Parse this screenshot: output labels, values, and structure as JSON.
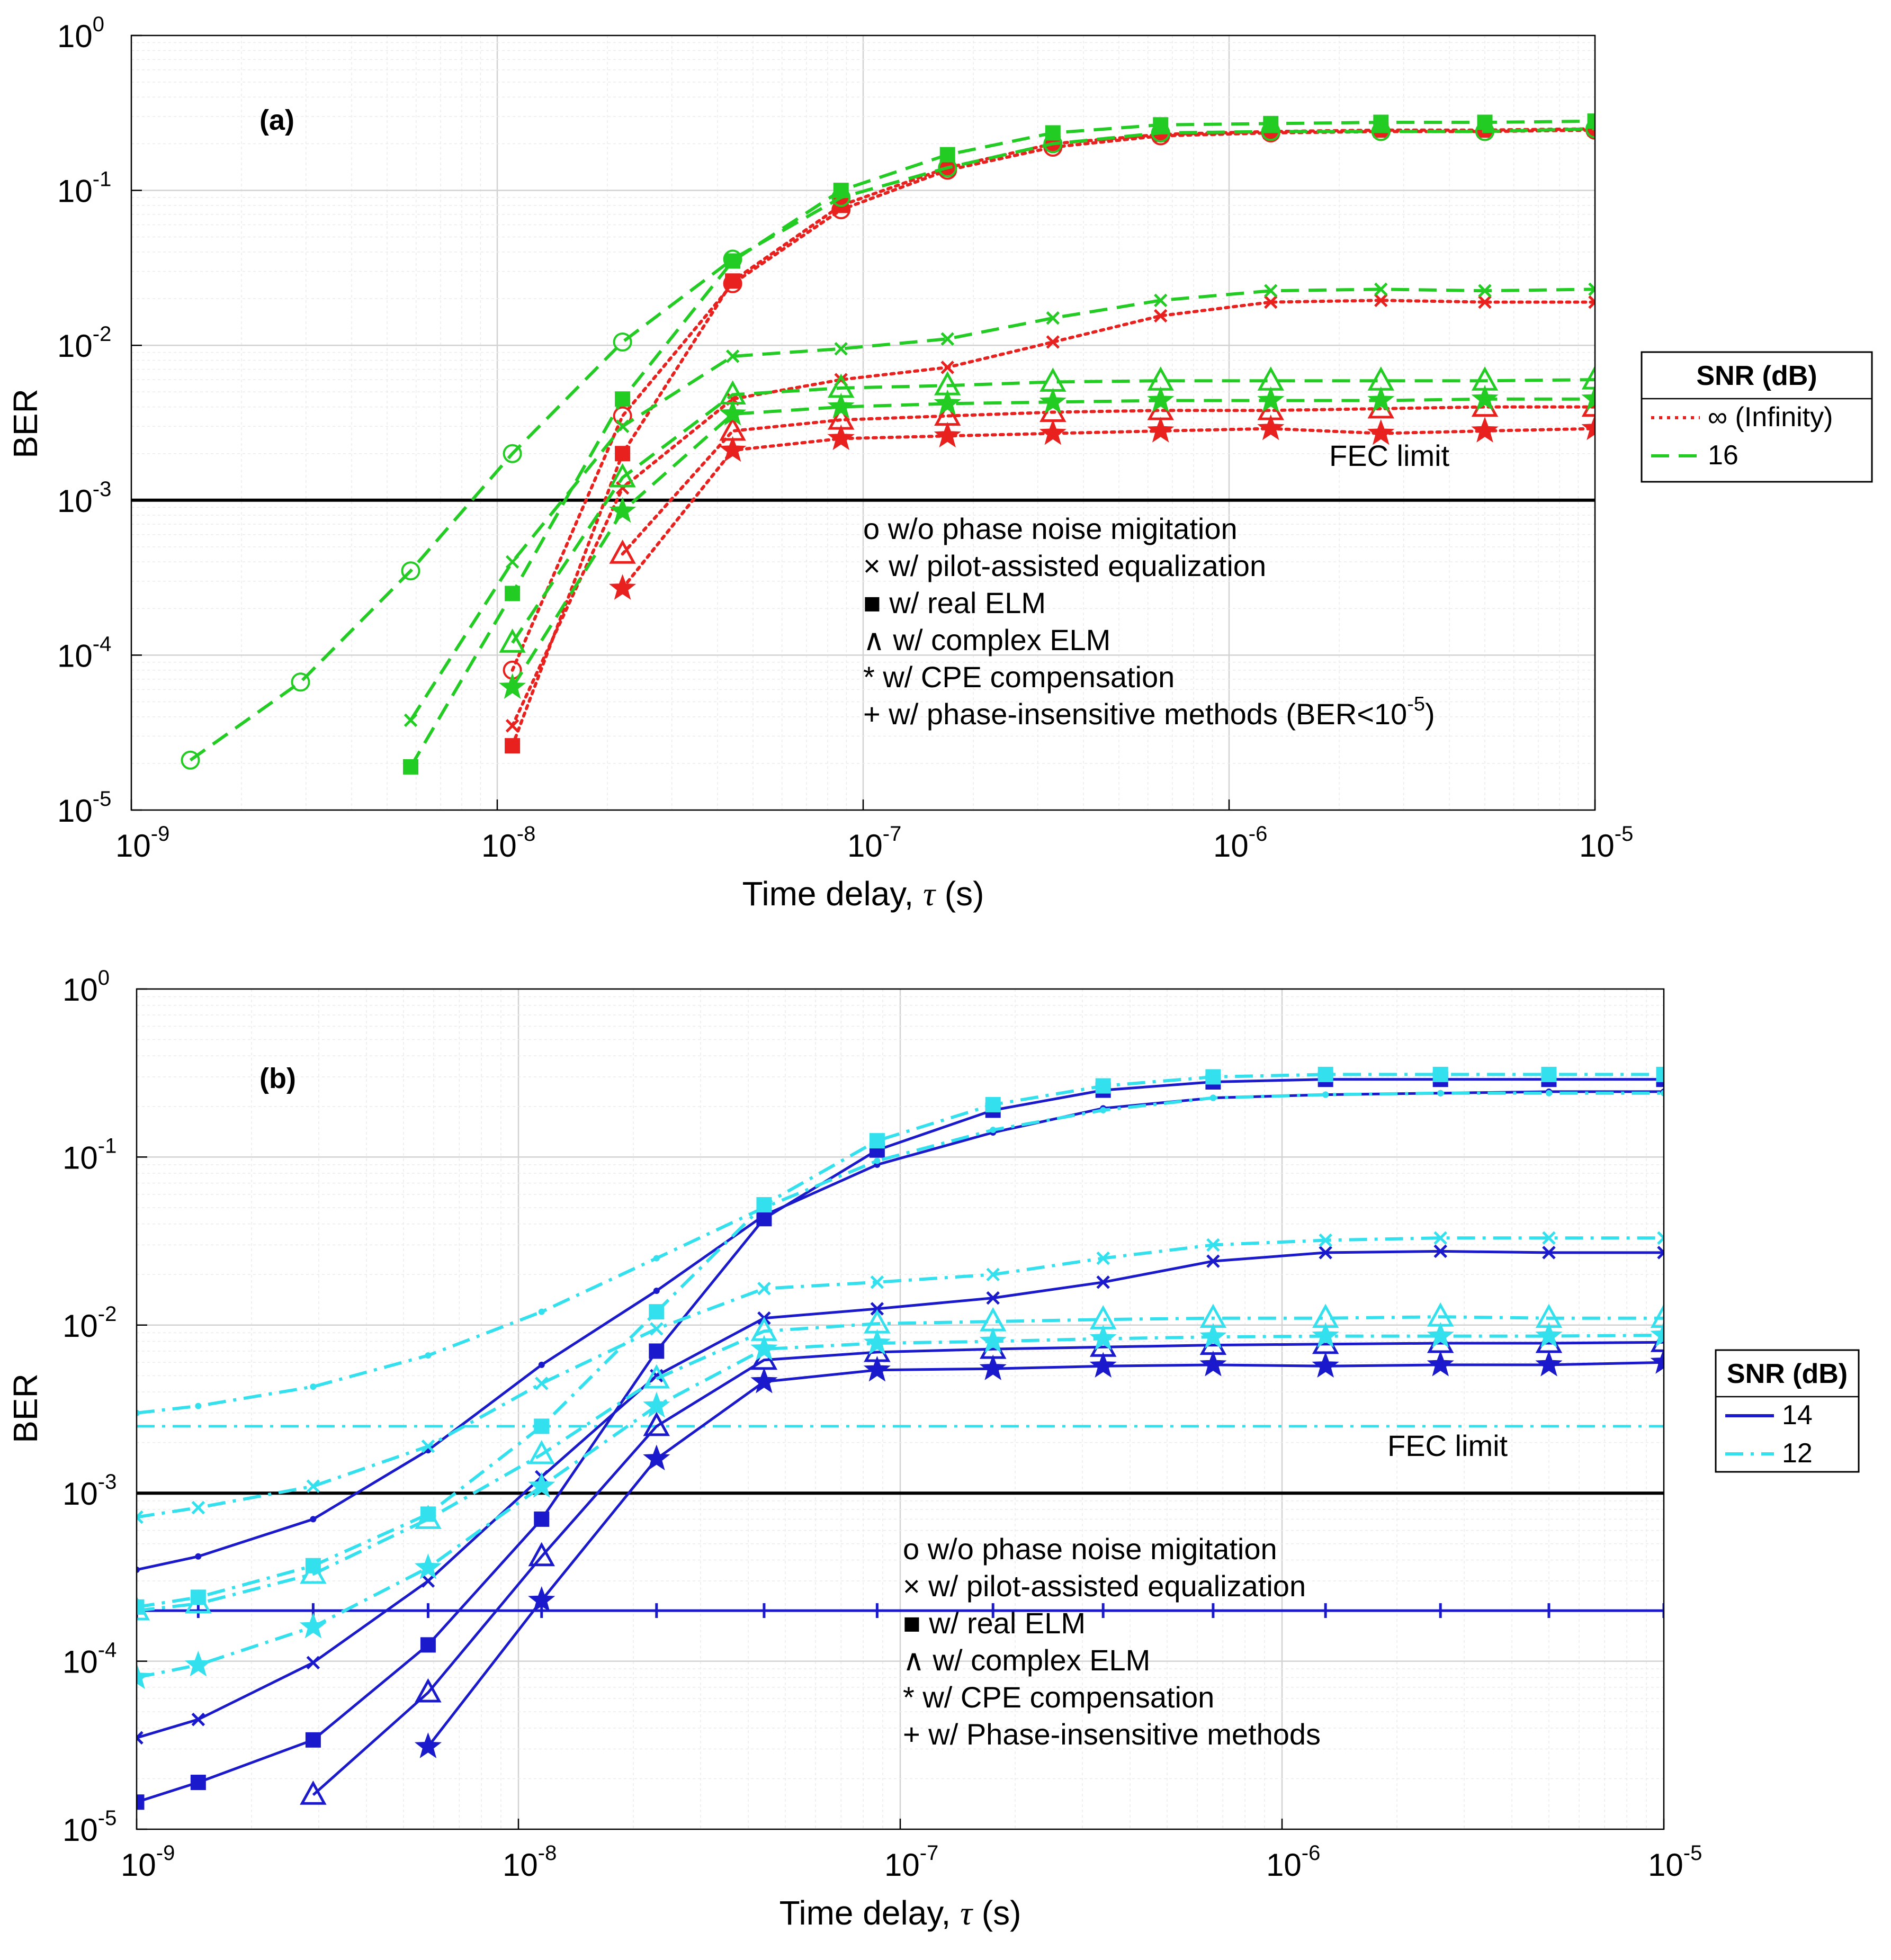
{
  "chart_data": [
    {
      "type": "line",
      "panel_label": "(a)",
      "xscale": "log",
      "yscale": "log",
      "xlim": [
        1e-09,
        1e-05
      ],
      "ylim": [
        1e-05,
        1
      ],
      "grid": true,
      "xlabel_main": "Time delay, ",
      "xlabel_tau": "τ",
      "xlabel_unit": " (s)",
      "ylabel": "BER",
      "x_ticks": [
        {
          "base": "10",
          "exp": "-9",
          "v": 1e-09
        },
        {
          "base": "10",
          "exp": "-8",
          "v": 1e-08
        },
        {
          "base": "10",
          "exp": "-7",
          "v": 1e-07
        },
        {
          "base": "10",
          "exp": "-6",
          "v": 1e-06
        },
        {
          "base": "10",
          "exp": "-5",
          "v": 1e-05
        }
      ],
      "y_ticks": [
        {
          "base": "10",
          "exp": "0",
          "v": 1
        },
        {
          "base": "10",
          "exp": "-1",
          "v": 0.1
        },
        {
          "base": "10",
          "exp": "-2",
          "v": 0.01
        },
        {
          "base": "10",
          "exp": "-3",
          "v": 0.001
        },
        {
          "base": "10",
          "exp": "-4",
          "v": 0.0001
        },
        {
          "base": "10",
          "exp": "-5",
          "v": 1e-05
        }
      ],
      "fec_limits": [
        {
          "value": 0.001,
          "color": "#000000",
          "style": "solid",
          "label": "FEC limit"
        }
      ],
      "notes": [
        "o w/o phase noise migitation",
        "× w/ pilot-assisted equalization",
        "■ w/ real ELM",
        "∧ w/ complex ELM",
        "* w/ CPE compensation",
        "+ w/ phase-insensitive methods (BER<10",
        "-5",
        ")"
      ],
      "legend": {
        "title": "SNR (dB)",
        "position": "right",
        "entries": [
          {
            "label": "∞ (Infinity)",
            "color": "#e8211f",
            "style": "dotted"
          },
          {
            "label": "16",
            "color": "#22cc22",
            "style": "dashed"
          }
        ]
      },
      "x": [
        1.45e-09,
        2.9e-09,
        5.8e-09,
        1.1e-08,
        2.2e-08,
        4.4e-08,
        8.7e-08,
        1.7e-07,
        3.3e-07,
        6.5e-07,
        1.3e-06,
        2.6e-06,
        5e-06,
        1e-05
      ],
      "series": [
        {
          "name": "∞ w/o",
          "color": "#e8211f",
          "style": "dotted",
          "marker": "circle",
          "values": [
            null,
            null,
            null,
            8e-05,
            0.0035,
            0.025,
            0.075,
            0.135,
            0.19,
            0.225,
            0.235,
            0.24,
            0.24,
            0.245
          ]
        },
        {
          "name": "∞ pilot",
          "color": "#e8211f",
          "style": "dotted",
          "marker": "x",
          "values": [
            null,
            null,
            null,
            3.5e-05,
            0.0012,
            0.0045,
            0.006,
            0.0072,
            0.0105,
            0.0155,
            0.019,
            0.0195,
            0.019,
            0.019
          ]
        },
        {
          "name": "∞ real ELM",
          "color": "#e8211f",
          "style": "dotted",
          "marker": "square",
          "values": [
            null,
            null,
            null,
            2.6e-05,
            0.002,
            0.026,
            0.08,
            0.14,
            0.2,
            0.23,
            0.24,
            0.245,
            0.245,
            0.25
          ]
        },
        {
          "name": "∞ complex ELM",
          "color": "#e8211f",
          "style": "dotted",
          "marker": "triangle",
          "values": [
            null,
            null,
            null,
            null,
            0.00045,
            0.0028,
            0.0033,
            0.0035,
            0.0037,
            0.0038,
            0.0038,
            0.0039,
            0.004,
            0.004
          ]
        },
        {
          "name": "∞ CPE",
          "color": "#e8211f",
          "style": "dotted",
          "marker": "star",
          "values": [
            null,
            null,
            null,
            null,
            0.00027,
            0.0021,
            0.0025,
            0.0026,
            0.0027,
            0.0028,
            0.0029,
            0.0027,
            0.0028,
            0.0029
          ]
        },
        {
          "name": "16 w/o",
          "color": "#22cc22",
          "style": "dashed",
          "marker": "circle",
          "values": [
            2.1e-05,
            6.7e-05,
            0.00035,
            0.002,
            0.0105,
            0.036,
            0.09,
            0.14,
            0.2,
            0.235,
            0.24,
            0.24,
            0.24,
            0.25
          ]
        },
        {
          "name": "16 pilot",
          "color": "#22cc22",
          "style": "dashed",
          "marker": "x",
          "values": [
            null,
            null,
            3.8e-05,
            0.0004,
            0.003,
            0.0085,
            0.0095,
            0.011,
            0.015,
            0.0195,
            0.0225,
            0.023,
            0.0225,
            0.023
          ]
        },
        {
          "name": "16 real ELM",
          "color": "#22cc22",
          "style": "dashed",
          "marker": "square",
          "values": [
            null,
            null,
            1.9e-05,
            0.00025,
            0.0045,
            0.035,
            0.1,
            0.17,
            0.235,
            0.265,
            0.27,
            0.275,
            0.275,
            0.28
          ]
        },
        {
          "name": "16 complex ELM",
          "color": "#22cc22",
          "style": "dashed",
          "marker": "triangle",
          "values": [
            null,
            null,
            null,
            0.00012,
            0.0014,
            0.0048,
            0.0053,
            0.0055,
            0.0058,
            0.0059,
            0.0059,
            0.0059,
            0.0059,
            0.006
          ]
        },
        {
          "name": "16 CPE",
          "color": "#22cc22",
          "style": "dashed",
          "marker": "star",
          "values": [
            null,
            null,
            null,
            6.2e-05,
            0.00085,
            0.0036,
            0.004,
            0.0042,
            0.0043,
            0.0044,
            0.0044,
            0.0044,
            0.0045,
            0.0045
          ]
        }
      ]
    },
    {
      "type": "line",
      "panel_label": "(b)",
      "xscale": "log",
      "yscale": "log",
      "xlim": [
        1e-09,
        1e-05
      ],
      "ylim": [
        1e-05,
        1
      ],
      "grid": true,
      "xlabel_main": "Time delay, ",
      "xlabel_tau": "τ",
      "xlabel_unit": " (s)",
      "ylabel": "BER",
      "x_ticks": [
        {
          "base": "10",
          "exp": "-9",
          "v": 1e-09
        },
        {
          "base": "10",
          "exp": "-8",
          "v": 1e-08
        },
        {
          "base": "10",
          "exp": "-7",
          "v": 1e-07
        },
        {
          "base": "10",
          "exp": "-6",
          "v": 1e-06
        },
        {
          "base": "10",
          "exp": "-5",
          "v": 1e-05
        }
      ],
      "y_ticks": [
        {
          "base": "10",
          "exp": "0",
          "v": 1
        },
        {
          "base": "10",
          "exp": "-1",
          "v": 0.1
        },
        {
          "base": "10",
          "exp": "-2",
          "v": 0.01
        },
        {
          "base": "10",
          "exp": "-3",
          "v": 0.001
        },
        {
          "base": "10",
          "exp": "-4",
          "v": 0.0001
        },
        {
          "base": "10",
          "exp": "-5",
          "v": 1e-05
        }
      ],
      "fec_limits": [
        {
          "value": 0.001,
          "color": "#000000",
          "style": "solid",
          "label": ""
        },
        {
          "value": 0.0025,
          "color": "#33e0ee",
          "style": "dashdot",
          "label": "FEC limit"
        }
      ],
      "notes": [
        "o w/o phase noise migitation",
        "× w/ pilot-assisted equalization",
        "■ w/ real ELM",
        "∧ w/ complex ELM",
        "* w/ CPE compensation",
        "+ w/ Phase-insensitive methods"
      ],
      "legend": {
        "title": "SNR (dB)",
        "position": "right",
        "entries": [
          {
            "label": "14",
            "color": "#1a1acc",
            "style": "solid"
          },
          {
            "label": "12",
            "color": "#33e0ee",
            "style": "dashdot"
          }
        ]
      },
      "x": [
        1e-09,
        1.45e-09,
        2.9e-09,
        5.8e-09,
        1.15e-08,
        2.3e-08,
        4.4e-08,
        8.7e-08,
        1.75e-07,
        3.4e-07,
        6.6e-07,
        1.3e-06,
        2.6e-06,
        5e-06,
        1e-05
      ],
      "series": [
        {
          "name": "14 w/o",
          "color": "#1a1acc",
          "style": "solid",
          "marker": "dot",
          "values": [
            0.00035,
            0.00042,
            0.0007,
            0.0018,
            0.0058,
            0.016,
            0.045,
            0.09,
            0.14,
            0.195,
            0.225,
            0.235,
            0.24,
            0.245,
            0.245
          ]
        },
        {
          "name": "14 pilot",
          "color": "#1a1acc",
          "style": "solid",
          "marker": "x",
          "values": [
            3.5e-05,
            4.5e-05,
            9.8e-05,
            0.0003,
            0.00125,
            0.005,
            0.011,
            0.0125,
            0.0145,
            0.018,
            0.024,
            0.027,
            0.0275,
            0.027,
            0.027
          ]
        },
        {
          "name": "14 real ELM",
          "color": "#1a1acc",
          "style": "solid",
          "marker": "square",
          "values": [
            1.45e-05,
            1.9e-05,
            3.4e-05,
            0.000125,
            0.0007,
            0.007,
            0.043,
            0.11,
            0.19,
            0.25,
            0.28,
            0.29,
            0.29,
            0.29,
            0.29
          ]
        },
        {
          "name": "14 complex ELM",
          "color": "#1a1acc",
          "style": "solid",
          "marker": "triangle",
          "values": [
            null,
            null,
            1.6e-05,
            6.5e-05,
            0.00042,
            0.0025,
            0.0062,
            0.0069,
            0.0072,
            0.0074,
            0.0076,
            0.0077,
            0.0078,
            0.0078,
            0.0079
          ]
        },
        {
          "name": "14 CPE",
          "color": "#1a1acc",
          "style": "solid",
          "marker": "star",
          "values": [
            null,
            null,
            null,
            3.1e-05,
            0.00023,
            0.0016,
            0.0046,
            0.0054,
            0.0055,
            0.0057,
            0.0058,
            0.0057,
            0.0058,
            0.0058,
            0.006
          ]
        },
        {
          "name": "14 phase-insensitive",
          "color": "#1a1acc",
          "style": "solid",
          "marker": "plus",
          "values": [
            0.0002,
            0.0002,
            0.0002,
            0.0002,
            0.0002,
            0.0002,
            0.0002,
            0.0002,
            0.0002,
            0.0002,
            0.0002,
            0.0002,
            0.0002,
            0.0002,
            0.0002
          ]
        },
        {
          "name": "12 w/o",
          "color": "#33e0ee",
          "style": "dashdot",
          "marker": "dot",
          "values": [
            0.003,
            0.0033,
            0.0043,
            0.0066,
            0.012,
            0.025,
            0.05,
            0.095,
            0.145,
            0.19,
            0.225,
            0.235,
            0.24,
            0.24,
            0.24
          ]
        },
        {
          "name": "12 pilot",
          "color": "#33e0ee",
          "style": "dashdot",
          "marker": "x",
          "values": [
            0.00072,
            0.00082,
            0.0011,
            0.0019,
            0.0045,
            0.0095,
            0.0165,
            0.018,
            0.02,
            0.025,
            0.03,
            0.032,
            0.033,
            0.033,
            0.033
          ]
        },
        {
          "name": "12 real ELM",
          "color": "#33e0ee",
          "style": "dashdot",
          "marker": "square",
          "values": [
            0.00021,
            0.00024,
            0.00037,
            0.00075,
            0.0025,
            0.012,
            0.052,
            0.125,
            0.205,
            0.265,
            0.3,
            0.31,
            0.31,
            0.31,
            0.31
          ]
        },
        {
          "name": "12 complex ELM",
          "color": "#33e0ee",
          "style": "dashdot",
          "marker": "triangle",
          "values": [
            0.0002,
            0.00022,
            0.00033,
            0.0007,
            0.0017,
            0.0048,
            0.0092,
            0.0102,
            0.0105,
            0.0108,
            0.011,
            0.011,
            0.0112,
            0.011,
            0.011
          ]
        },
        {
          "name": "12 CPE",
          "color": "#33e0ee",
          "style": "dashdot",
          "marker": "star",
          "values": [
            8e-05,
            9.5e-05,
            0.00016,
            0.00036,
            0.0011,
            0.0033,
            0.0072,
            0.0078,
            0.008,
            0.0083,
            0.0085,
            0.0086,
            0.0086,
            0.0086,
            0.0087
          ]
        }
      ]
    }
  ]
}
